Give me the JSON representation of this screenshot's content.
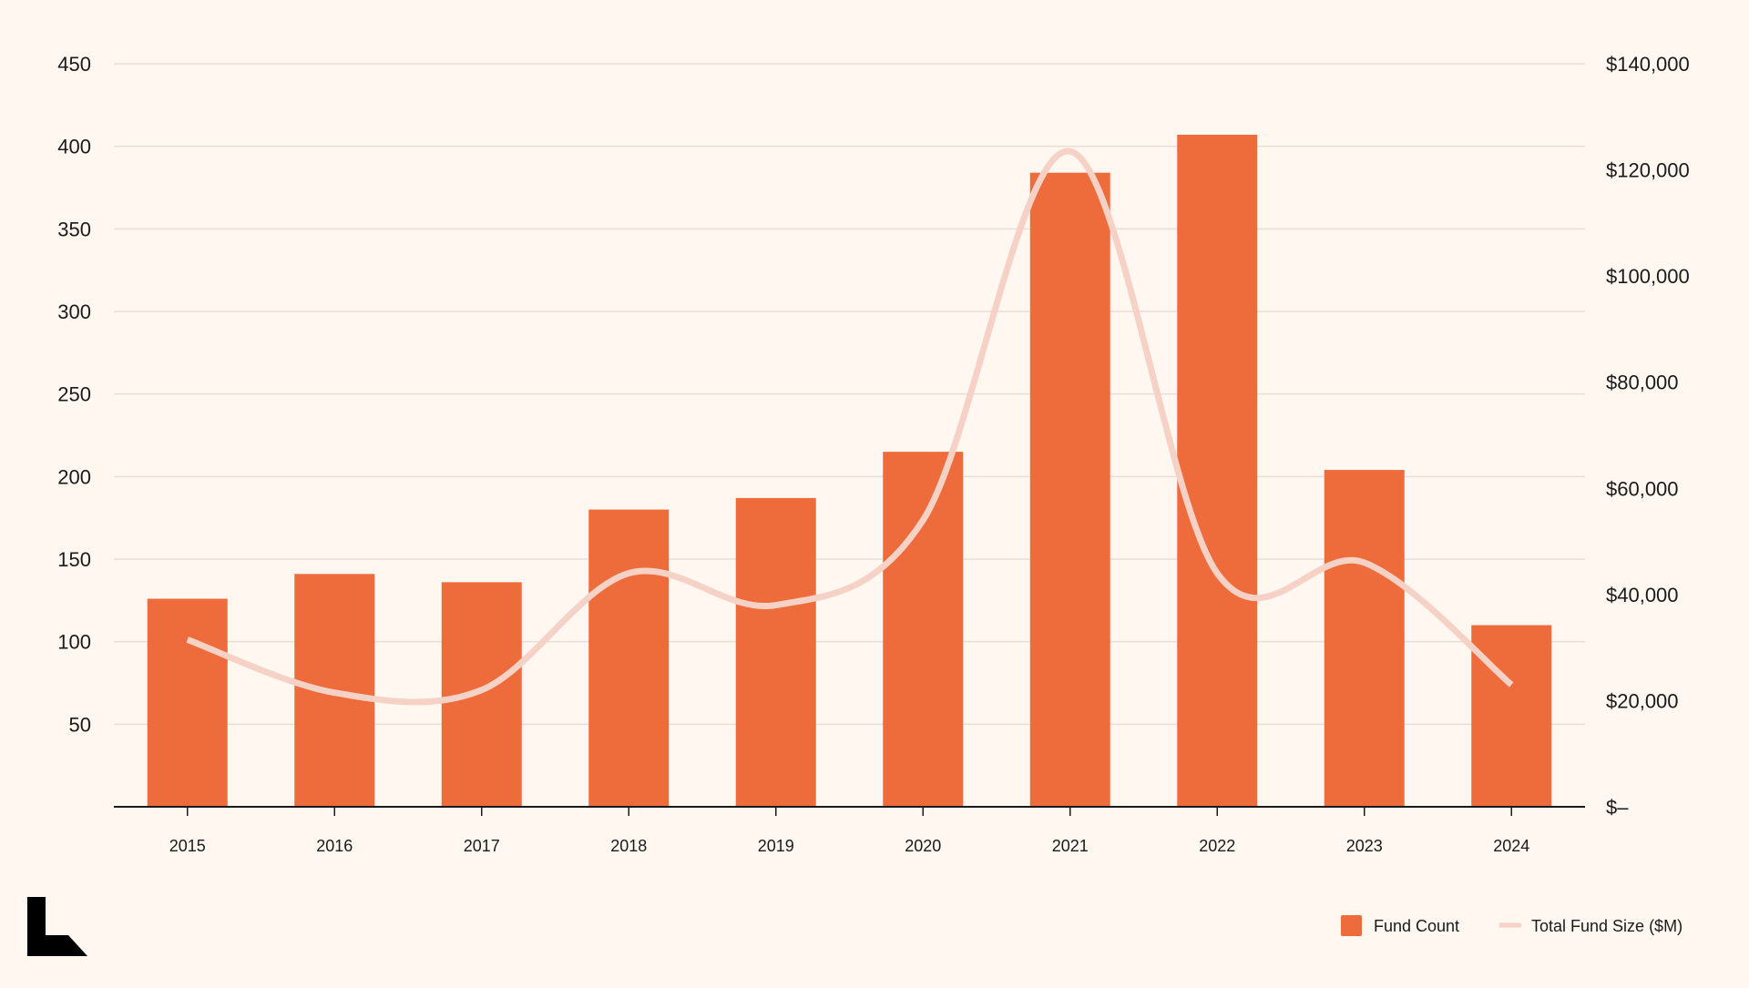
{
  "colors": {
    "background": "#FFF7F0",
    "bar": "#EE6B3B",
    "line": "#F6D2C6",
    "grid": "#E9DDD6",
    "axis": "#1a1a1a",
    "logo": "#000000"
  },
  "logo": {
    "icon": "brand-logo-icon"
  },
  "chart_data": {
    "type": "bar",
    "categories": [
      "2015",
      "2016",
      "2017",
      "2018",
      "2019",
      "2020",
      "2021",
      "2022",
      "2023",
      "2024"
    ],
    "series": [
      {
        "name": "Fund Count",
        "type": "bar",
        "axis": "left",
        "values": [
          126,
          141,
          136,
          180,
          187,
          215,
          384,
          407,
          204,
          110
        ]
      },
      {
        "name": "Total Fund Size ($M)",
        "type": "line",
        "axis": "right",
        "smooth": true,
        "values": [
          31500,
          21500,
          22000,
          44000,
          38000,
          54000,
          123500,
          44000,
          46000,
          23000
        ]
      }
    ],
    "y_left": {
      "range": [
        0,
        450
      ],
      "ticks": [
        "50",
        "100",
        "150",
        "200",
        "250",
        "300",
        "350",
        "400",
        "450"
      ]
    },
    "y_right": {
      "range": [
        0,
        140000
      ],
      "ticks": [
        "$–",
        "$20,000",
        "$40,000",
        "$60,000",
        "$80,000",
        "$100,000",
        "$120,000",
        "$140,000"
      ]
    },
    "grid": true,
    "legend": {
      "position": "bottom-right",
      "entries": [
        "Fund Count",
        "Total Fund Size ($M)"
      ]
    }
  }
}
